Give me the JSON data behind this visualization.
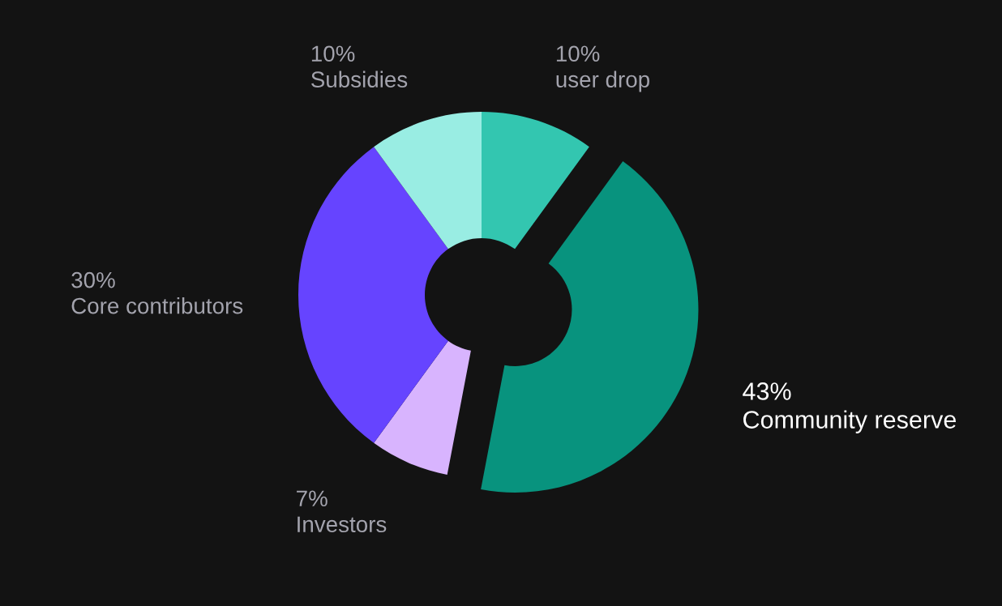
{
  "chart_data": {
    "type": "donut",
    "categories": [
      "user drop",
      "Community reserve",
      "Investors",
      "Core contributors",
      "Subsidies"
    ],
    "values": [
      10,
      43,
      7,
      30,
      10
    ],
    "value_labels": [
      "10%",
      "43%",
      "7%",
      "30%",
      "10%"
    ],
    "colors": [
      "#33c6b0",
      "#08937e",
      "#d8b4fe",
      "#6644ff",
      "#99ede3"
    ],
    "legend": false
  }
}
